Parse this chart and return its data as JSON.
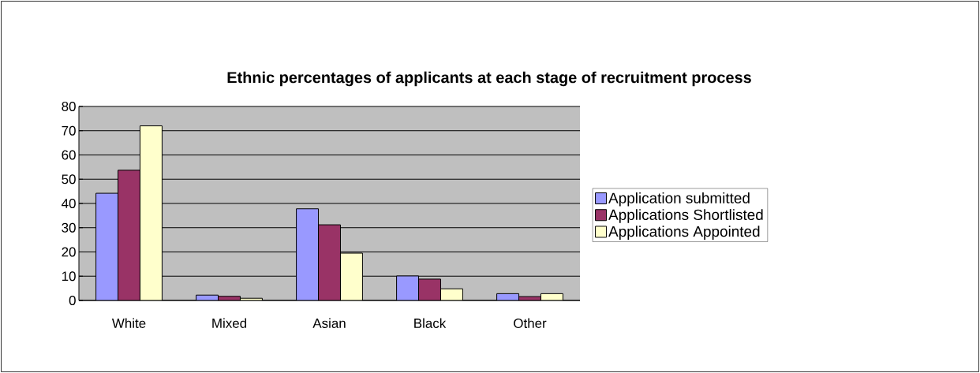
{
  "chart_data": {
    "type": "bar",
    "title": "Ethnic percentages of applicants at each stage of recruitment process",
    "categories": [
      "White",
      "Mixed",
      "Asian",
      "Black",
      "Other"
    ],
    "series": [
      {
        "name": "Application submitted",
        "color": "#9999ff",
        "values": [
          44.2,
          2.2,
          37.8,
          10.1,
          2.8
        ]
      },
      {
        "name": "Applications Shortlisted",
        "color": "#993366",
        "values": [
          53.7,
          1.7,
          31.2,
          8.8,
          1.6
        ]
      },
      {
        "name": "Applications Appointed",
        "color": "#ffffcc",
        "values": [
          72,
          0.9,
          19.5,
          4.8,
          2.8
        ]
      }
    ],
    "ylim": [
      0,
      80
    ],
    "yticks": [
      0,
      10,
      20,
      30,
      40,
      50,
      60,
      70,
      80
    ],
    "grid": "y",
    "legend": "right"
  }
}
